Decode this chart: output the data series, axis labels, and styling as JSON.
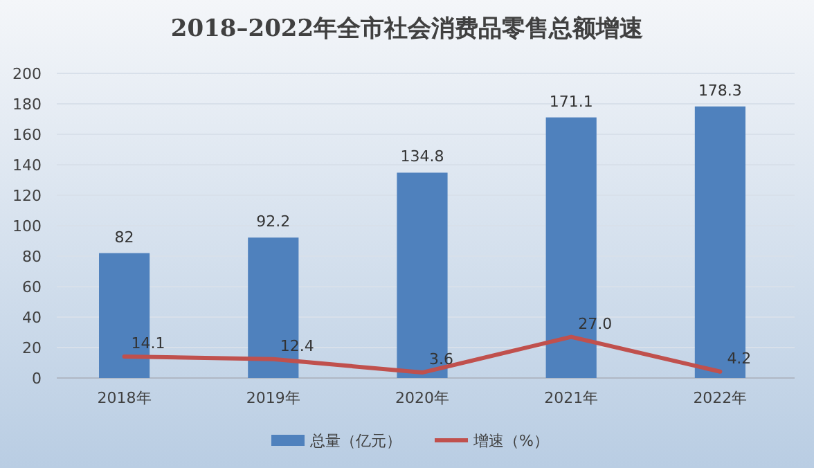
{
  "chart_data": {
    "type": "bar",
    "title": "2018–2022年全市社会消费品零售总额增速",
    "categories": [
      "2018年",
      "2019年",
      "2020年",
      "2021年",
      "2022年"
    ],
    "series": [
      {
        "name": "总量（亿元）",
        "color": "#4f81bd",
        "values": [
          82,
          92.2,
          134.8,
          171.1,
          178.3
        ]
      },
      {
        "name": "增速（%）",
        "type": "line",
        "color": "#c0504d",
        "values": [
          14.1,
          12.4,
          3.6,
          27.0,
          4.2
        ],
        "value_labels": [
          "14.1",
          "12.4",
          "3.6",
          "27.0",
          "4.2"
        ]
      }
    ],
    "ylim": [
      0,
      200
    ],
    "yticks": [
      0,
      20,
      40,
      60,
      80,
      100,
      120,
      140,
      160,
      180,
      200
    ],
    "grid": "y",
    "legend": "bottom",
    "data_labels": true
  }
}
